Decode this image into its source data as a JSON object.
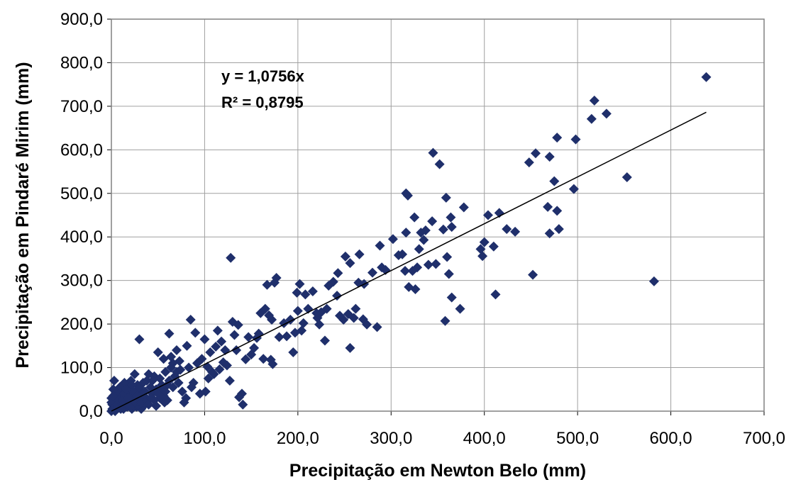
{
  "chart_data": {
    "type": "scatter",
    "xlabel": "Precipitação em Newton Belo (mm)",
    "ylabel": "Precipitação em Pindaré Mirim (mm)",
    "xlim": [
      0,
      700
    ],
    "ylim": [
      0,
      900
    ],
    "x_ticks": [
      "0,0",
      "100,0",
      "200,0",
      "300,0",
      "400,0",
      "500,0",
      "600,0",
      "700,0"
    ],
    "y_ticks": [
      "0,0",
      "100,0",
      "200,0",
      "300,0",
      "400,0",
      "500,0",
      "600,0",
      "700,0",
      "800,0",
      "900,0"
    ],
    "grid": true,
    "marker": "diamond",
    "marker_color": "#1f2f6b",
    "trendline": {
      "slope": 1.0756,
      "x_range": [
        0,
        638
      ],
      "color": "#000000"
    },
    "annotations": {
      "equation": "y = 1,0756x",
      "r2": "R² = 0,8795"
    },
    "points": [
      [
        638,
        767
      ],
      [
        518,
        713
      ],
      [
        515,
        671
      ],
      [
        531,
        683
      ],
      [
        498,
        624
      ],
      [
        478,
        628
      ],
      [
        455,
        592
      ],
      [
        448,
        571
      ],
      [
        470,
        584
      ],
      [
        475,
        528
      ],
      [
        553,
        537
      ],
      [
        496,
        510
      ],
      [
        582,
        298
      ],
      [
        468,
        469
      ],
      [
        478,
        460
      ],
      [
        480,
        418
      ],
      [
        470,
        408
      ],
      [
        452,
        313
      ],
      [
        433,
        412
      ],
      [
        424,
        418
      ],
      [
        416,
        455
      ],
      [
        404,
        450
      ],
      [
        410,
        378
      ],
      [
        412,
        268
      ],
      [
        400,
        388
      ],
      [
        398,
        356
      ],
      [
        396,
        372
      ],
      [
        378,
        468
      ],
      [
        374,
        235
      ],
      [
        365,
        261
      ],
      [
        362,
        315
      ],
      [
        360,
        354
      ],
      [
        359,
        490
      ],
      [
        358,
        207
      ],
      [
        356,
        417
      ],
      [
        364,
        445
      ],
      [
        365,
        423
      ],
      [
        352,
        567
      ],
      [
        348,
        338
      ],
      [
        345,
        593
      ],
      [
        344,
        436
      ],
      [
        340,
        336
      ],
      [
        337,
        415
      ],
      [
        335,
        393
      ],
      [
        332,
        410
      ],
      [
        330,
        372
      ],
      [
        328,
        330
      ],
      [
        326,
        280
      ],
      [
        325,
        445
      ],
      [
        323,
        322
      ],
      [
        319,
        285
      ],
      [
        318,
        495
      ],
      [
        316,
        500
      ],
      [
        316,
        410
      ],
      [
        315,
        322
      ],
      [
        312,
        360
      ],
      [
        308,
        358
      ],
      [
        302,
        395
      ],
      [
        294,
        324
      ],
      [
        290,
        330
      ],
      [
        288,
        380
      ],
      [
        285,
        193
      ],
      [
        280,
        318
      ],
      [
        274,
        199
      ],
      [
        271,
        292
      ],
      [
        270,
        211
      ],
      [
        266,
        360
      ],
      [
        265,
        295
      ],
      [
        262,
        235
      ],
      [
        260,
        214
      ],
      [
        256,
        145
      ],
      [
        256,
        340
      ],
      [
        254,
        223
      ],
      [
        251,
        355
      ],
      [
        249,
        210
      ],
      [
        245,
        219
      ],
      [
        243,
        317
      ],
      [
        242,
        265
      ],
      [
        238,
        297
      ],
      [
        233,
        288
      ],
      [
        231,
        235
      ],
      [
        229,
        162
      ],
      [
        225,
        227
      ],
      [
        223,
        199
      ],
      [
        221,
        214
      ],
      [
        220,
        225
      ],
      [
        216,
        275
      ],
      [
        211,
        235
      ],
      [
        208,
        268
      ],
      [
        206,
        202
      ],
      [
        204,
        185
      ],
      [
        202,
        292
      ],
      [
        200,
        230
      ],
      [
        199,
        272
      ],
      [
        197,
        180
      ],
      [
        195,
        135
      ],
      [
        192,
        210
      ],
      [
        188,
        172
      ],
      [
        185,
        202
      ],
      [
        180,
        170
      ],
      [
        177,
        306
      ],
      [
        175,
        295
      ],
      [
        173,
        108
      ],
      [
        172,
        210
      ],
      [
        171,
        118
      ],
      [
        169,
        220
      ],
      [
        167,
        290
      ],
      [
        165,
        235
      ],
      [
        163,
        120
      ],
      [
        160,
        225
      ],
      [
        158,
        178
      ],
      [
        156,
        168
      ],
      [
        153,
        145
      ],
      [
        150,
        130
      ],
      [
        147,
        170
      ],
      [
        144,
        119
      ],
      [
        141,
        15
      ],
      [
        140,
        40
      ],
      [
        137,
        32
      ],
      [
        136,
        198
      ],
      [
        134,
        140
      ],
      [
        132,
        175
      ],
      [
        130,
        205
      ],
      [
        128,
        352
      ],
      [
        127,
        70
      ],
      [
        124,
        105
      ],
      [
        122,
        140
      ],
      [
        120,
        112
      ],
      [
        118,
        160
      ],
      [
        116,
        96
      ],
      [
        114,
        185
      ],
      [
        112,
        148
      ],
      [
        110,
        85
      ],
      [
        108,
        90
      ],
      [
        106,
        135
      ],
      [
        104,
        75
      ],
      [
        103,
        102
      ],
      [
        101,
        45
      ],
      [
        100,
        165
      ],
      [
        97,
        120
      ],
      [
        95,
        40
      ],
      [
        92,
        110
      ],
      [
        90,
        180
      ],
      [
        88,
        65
      ],
      [
        86,
        55
      ],
      [
        85,
        210
      ],
      [
        83,
        100
      ],
      [
        81,
        150
      ],
      [
        80,
        30
      ],
      [
        78,
        20
      ],
      [
        76,
        45
      ],
      [
        74,
        95
      ],
      [
        72,
        65
      ],
      [
        70,
        140
      ],
      [
        68,
        80
      ],
      [
        66,
        110
      ],
      [
        64,
        125
      ],
      [
        62,
        178
      ],
      [
        60,
        60
      ],
      [
        58,
        90
      ],
      [
        57,
        20
      ],
      [
        56,
        120
      ],
      [
        54,
        50
      ],
      [
        52,
        30
      ],
      [
        50,
        135
      ],
      [
        48,
        12
      ],
      [
        46,
        80
      ],
      [
        44,
        40
      ],
      [
        42,
        55
      ],
      [
        40,
        85
      ],
      [
        39,
        25
      ],
      [
        38,
        70
      ],
      [
        36,
        15
      ],
      [
        35,
        35
      ],
      [
        34,
        30
      ],
      [
        33,
        45
      ],
      [
        32,
        5
      ],
      [
        30,
        165
      ],
      [
        29,
        20
      ],
      [
        28,
        60
      ],
      [
        27,
        10
      ],
      [
        26,
        45
      ],
      [
        25,
        85
      ],
      [
        24,
        30
      ],
      [
        23,
        15
      ],
      [
        22,
        5
      ],
      [
        21,
        70
      ],
      [
        20,
        40
      ],
      [
        19,
        25
      ],
      [
        18,
        55
      ],
      [
        17,
        10
      ],
      [
        16,
        35
      ],
      [
        15,
        20
      ],
      [
        14,
        65
      ],
      [
        13,
        5
      ],
      [
        12,
        45
      ],
      [
        11,
        15
      ],
      [
        10,
        30
      ],
      [
        9,
        55
      ],
      [
        8,
        8
      ],
      [
        7,
        20
      ],
      [
        6,
        40
      ],
      [
        5,
        5
      ],
      [
        4,
        25
      ],
      [
        3,
        10
      ],
      [
        3,
        70
      ],
      [
        2,
        50
      ],
      [
        1,
        15
      ],
      [
        0,
        0
      ],
      [
        0,
        30
      ],
      [
        0,
        20
      ],
      [
        1,
        5
      ],
      [
        2,
        35
      ],
      [
        4,
        0
      ],
      [
        6,
        15
      ],
      [
        8,
        25
      ],
      [
        10,
        5
      ],
      [
        12,
        25
      ],
      [
        14,
        40
      ],
      [
        16,
        50
      ],
      [
        18,
        30
      ],
      [
        20,
        10
      ],
      [
        22,
        60
      ],
      [
        24,
        45
      ],
      [
        26,
        25
      ],
      [
        28,
        35
      ],
      [
        30,
        55
      ],
      [
        32,
        20
      ],
      [
        34,
        65
      ],
      [
        36,
        45
      ],
      [
        38,
        25
      ],
      [
        40,
        15
      ],
      [
        42,
        30
      ],
      [
        44,
        70
      ],
      [
        46,
        25
      ],
      [
        48,
        50
      ],
      [
        50,
        40
      ],
      [
        52,
        75
      ],
      [
        54,
        60
      ],
      [
        56,
        35
      ],
      [
        58,
        45
      ],
      [
        60,
        25
      ],
      [
        62,
        70
      ],
      [
        64,
        100
      ],
      [
        66,
        55
      ],
      [
        70,
        90
      ],
      [
        73,
        115
      ]
    ]
  }
}
